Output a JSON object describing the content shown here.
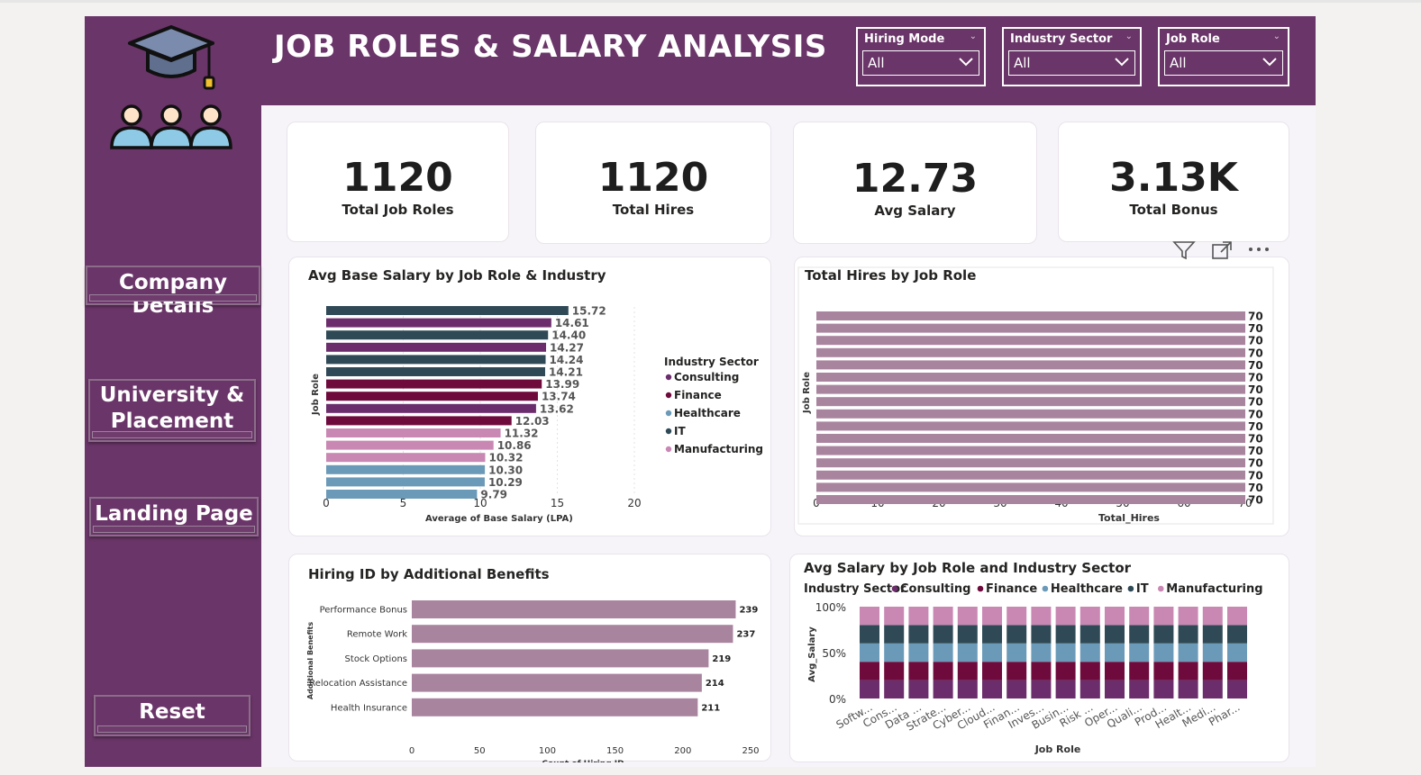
{
  "header": {
    "title": "JOB ROLES & SALARY ANALYSIS"
  },
  "colors": {
    "primary": "#6a3568",
    "consulting": "#6b2d6b",
    "finance": "#6e0a3c",
    "healthcare": "#6b9ab8",
    "it": "#2f4a56",
    "manufacturing": "#c988b3",
    "single_bar": "#a9849f"
  },
  "slicers": [
    {
      "label": "Hiring Mode",
      "value": "All"
    },
    {
      "label": "Industry Sector",
      "value": "All"
    },
    {
      "label": "Job Role",
      "value": "All"
    }
  ],
  "nav": {
    "company": "Company Details",
    "university_1": "University &",
    "university_2": "Placement",
    "landing": "Landing Page",
    "reset": "Reset"
  },
  "icons": {
    "logo": "graduation-cap-icon",
    "people": "students-group-icon",
    "filter": "filter-icon",
    "focus": "focus-mode-icon",
    "more": "more-options-icon"
  },
  "kpis": [
    {
      "value": "1120",
      "label": "Total Job Roles"
    },
    {
      "value": "1120",
      "label": "Total Hires"
    },
    {
      "value": "12.73",
      "label": "Avg Salary"
    },
    {
      "value": "3.13K",
      "label": "Total Bonus"
    }
  ],
  "chart_data": [
    {
      "type": "bar",
      "title": "Avg Base Salary by Job Role & Industry",
      "xlabel": "Average of Base Salary (LPA)",
      "ylabel": "Job Role",
      "xlim": [
        0,
        20
      ],
      "xticks": [
        "0",
        "5",
        "10",
        "15",
        "20"
      ],
      "legend_title": "Industry Sector",
      "legend": [
        "Consulting",
        "Finance",
        "Healthcare",
        "IT",
        "Manufacturing"
      ],
      "values": [
        15.72,
        14.61,
        14.4,
        14.27,
        14.24,
        14.21,
        13.99,
        13.74,
        13.62,
        12.03,
        11.32,
        10.86,
        10.32,
        10.3,
        10.29,
        9.79
      ],
      "labels": [
        "15.72",
        "14.61",
        "14.40",
        "14.27",
        "14.24",
        "14.21",
        "13.99",
        "13.74",
        "13.62",
        "12.03",
        "11.32",
        "10.86",
        "10.32",
        "10.30",
        "10.29",
        "9.79"
      ],
      "sectors": [
        "IT",
        "Consulting",
        "IT",
        "Consulting",
        "IT",
        "IT",
        "Finance",
        "Finance",
        "Consulting",
        "Finance",
        "Manufacturing",
        "Manufacturing",
        "Manufacturing",
        "Healthcare",
        "Healthcare",
        "Healthcare"
      ]
    },
    {
      "type": "bar",
      "title": "Total Hires by Job Role",
      "xlabel": "Total_Hires",
      "ylabel": "Job Role",
      "xlim": [
        0,
        70
      ],
      "xticks": [
        "0",
        "10",
        "20",
        "30",
        "40",
        "50",
        "60",
        "70"
      ],
      "values": [
        70,
        70,
        70,
        70,
        70,
        70,
        70,
        70,
        70,
        70,
        70,
        70,
        70,
        70,
        70,
        70
      ],
      "labels": [
        "70",
        "70",
        "70",
        "70",
        "70",
        "70",
        "70",
        "70",
        "70",
        "70",
        "70",
        "70",
        "70",
        "70",
        "70",
        "70"
      ]
    },
    {
      "type": "bar",
      "title": "Hiring ID by Additional Benefits",
      "xlabel": "Count of Hiring ID",
      "ylabel": "Additional Benefits",
      "xlim": [
        0,
        250
      ],
      "xticks": [
        "0",
        "50",
        "100",
        "150",
        "200",
        "250"
      ],
      "categories": [
        "Performance Bonus",
        "Remote Work",
        "Stock Options",
        "Relocation Assistance",
        "Health Insurance"
      ],
      "values": [
        239,
        237,
        219,
        214,
        211
      ],
      "labels": [
        "239",
        "237",
        "219",
        "214",
        "211"
      ]
    },
    {
      "type": "bar",
      "stacked": "100%",
      "title": "Avg Salary by Job Role and Industry Sector",
      "xlabel": "Job Role",
      "ylabel": "Avg_Salary",
      "ylim": [
        0,
        100
      ],
      "yticks": [
        "100%",
        "50%",
        "0%"
      ],
      "legend_title": "Industry Sector",
      "legend": [
        "Consulting",
        "Finance",
        "Healthcare",
        "IT",
        "Manufacturing"
      ],
      "categories": [
        "Softw...",
        "Cons...",
        "Data ...",
        "Strate...",
        "Cyber...",
        "Cloud...",
        "Finan...",
        "Inves...",
        "Busin...",
        "Risk ...",
        "Oper...",
        "Quali...",
        "Prod...",
        "Healt...",
        "Medi...",
        "Phar..."
      ],
      "stack_order_bottom_to_top": [
        "Consulting",
        "Finance",
        "Healthcare",
        "IT",
        "Manufacturing"
      ],
      "shares": [
        20,
        20,
        20,
        20,
        20
      ]
    }
  ]
}
